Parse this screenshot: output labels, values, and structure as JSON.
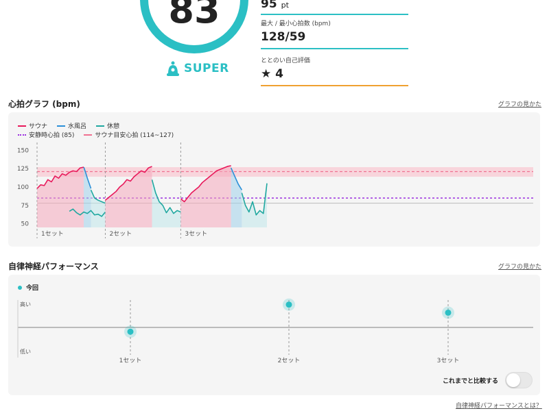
{
  "score": {
    "value": "83",
    "rank_label": "SUPER",
    "rank_icon": "sauna-hat-icon",
    "accent": "#2bbfc4"
  },
  "stats": [
    {
      "label": "",
      "value": "95",
      "unit": "pt"
    },
    {
      "label": "最大 / 最小心拍数 (bpm)",
      "value": "128/59"
    },
    {
      "label": "ととのい自己評価",
      "value": "4",
      "icon": "star-icon"
    }
  ],
  "heart_section": {
    "title": "心拍グラフ (bpm)",
    "how_link": "グラフの見かた"
  },
  "perf_section": {
    "title": "自律神経パフォーマンス",
    "how_link": "グラフの見かた",
    "legend_label": "今回",
    "y_high": "高い",
    "y_low": "低い",
    "compare_label": "これまでと比較する",
    "compare_on": false,
    "footer_link": "自律神経パフォーマンスとは？"
  },
  "chart_data": [
    {
      "type": "line",
      "ylim": [
        45,
        155
      ],
      "yticks": [
        150,
        125,
        100,
        75,
        50
      ],
      "legend": [
        {
          "name": "サウナ",
          "color": "#e8185a",
          "style": "solid"
        },
        {
          "name": "水風呂",
          "color": "#2a8fd8",
          "style": "solid"
        },
        {
          "name": "休憩",
          "color": "#1fa8a0",
          "style": "solid"
        },
        {
          "name": "安静時心拍 (85)",
          "color": "#9b2fe0",
          "style": "dotted"
        },
        {
          "name": "サウナ目安心拍 (114~127)",
          "color": "#f07090",
          "style": "dashed"
        }
      ],
      "resting_hr": 85,
      "sauna_target_band": [
        114,
        127
      ],
      "sauna_target_line": 121,
      "baseline": 78,
      "x_range": [
        0,
        64
      ],
      "set_labels": [
        "1セット",
        "2セット",
        "3セット"
      ],
      "set_starts": [
        0,
        19,
        40
      ],
      "segments": [
        {
          "phase": "sauna",
          "x": [
            0,
            1,
            2,
            3,
            4,
            5,
            6,
            7,
            8,
            9,
            10,
            11,
            12,
            13
          ],
          "y": [
            98,
            103,
            102,
            110,
            107,
            115,
            112,
            118,
            116,
            120,
            122,
            121,
            126,
            127
          ]
        },
        {
          "phase": "water",
          "x": [
            13,
            13.5,
            14,
            14.5,
            15
          ],
          "y": [
            127,
            120,
            112,
            105,
            98
          ]
        },
        {
          "phase": "rest",
          "x": [
            15,
            16,
            17,
            18,
            19
          ],
          "y": [
            96,
            85,
            82,
            80,
            78
          ]
        },
        {
          "phase": "rest2",
          "x": [
            9,
            10,
            11,
            12,
            13,
            14,
            15,
            16,
            17,
            18,
            19
          ],
          "y": [
            67,
            70,
            65,
            62,
            66,
            64,
            68,
            62,
            63,
            60,
            66
          ]
        },
        {
          "phase": "sauna",
          "x": [
            19,
            20,
            21,
            22,
            23,
            24,
            25,
            26,
            27,
            28,
            29,
            30,
            31,
            32
          ],
          "y": [
            82,
            86,
            90,
            94,
            100,
            104,
            110,
            108,
            114,
            118,
            122,
            120,
            126,
            128
          ]
        },
        {
          "phase": "rest",
          "x": [
            32,
            33,
            34,
            35,
            36,
            37,
            38,
            39,
            40
          ],
          "y": [
            110,
            92,
            80,
            75,
            65,
            72,
            64,
            68,
            66
          ]
        },
        {
          "phase": "sauna",
          "x": [
            40,
            41,
            42,
            43,
            44,
            45,
            46,
            47,
            48,
            49,
            50,
            51,
            52,
            53,
            54
          ],
          "y": [
            84,
            80,
            86,
            92,
            96,
            100,
            106,
            110,
            114,
            118,
            122,
            124,
            126,
            128,
            129
          ]
        },
        {
          "phase": "water",
          "x": [
            54,
            55,
            56,
            57
          ],
          "y": [
            126,
            115,
            104,
            96
          ]
        },
        {
          "phase": "rest",
          "x": [
            57,
            58,
            59,
            60,
            61,
            62,
            63,
            64
          ],
          "y": [
            92,
            75,
            66,
            80,
            62,
            68,
            64,
            105
          ]
        }
      ]
    },
    {
      "type": "scatter",
      "categories": [
        "1セット",
        "2セット",
        "3セット"
      ],
      "values": [
        0.45,
        0.92,
        0.78
      ],
      "series_name": "今回",
      "color": "#2bbfc4"
    }
  ]
}
